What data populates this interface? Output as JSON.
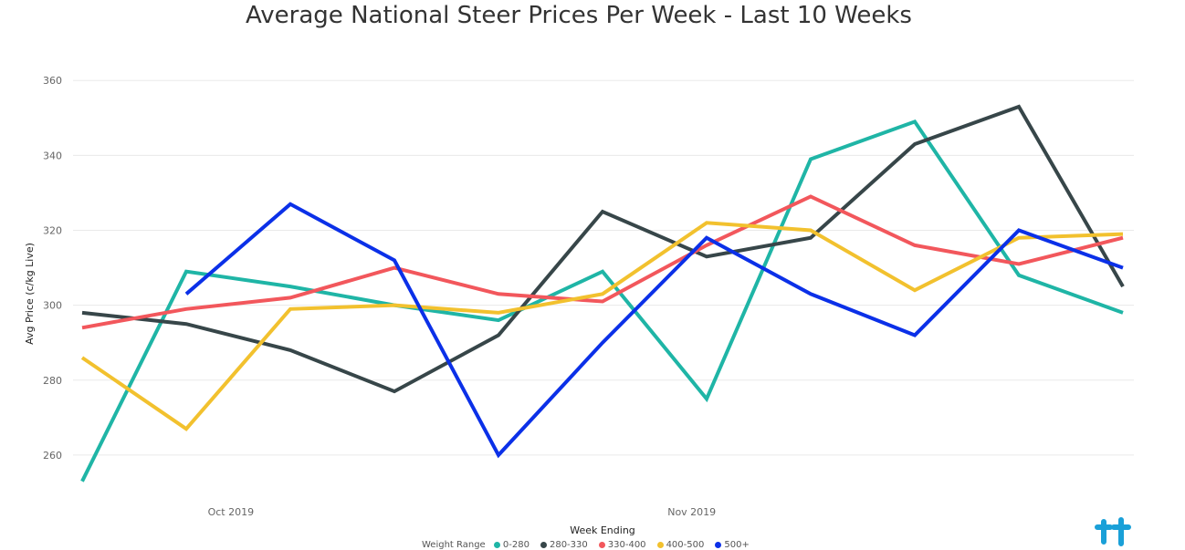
{
  "chart_data": {
    "type": "line",
    "title": "Average National Steer Prices Per Week - Last 10 Weeks",
    "xlabel": "Week Ending",
    "ylabel": "Avg Price (c/kg Live)",
    "ylim": [
      250,
      362
    ],
    "yticks": [
      260,
      280,
      300,
      320,
      340,
      360
    ],
    "x": [
      "2019-09-21",
      "2019-09-28",
      "2019-10-05",
      "2019-10-12",
      "2019-10-19",
      "2019-10-26",
      "2019-11-02",
      "2019-11-09",
      "2019-11-16",
      "2019-11-23",
      "2019-11-30"
    ],
    "xtick_labels": [
      {
        "date": "2019-10-01",
        "label": "Oct 2019"
      },
      {
        "date": "2019-11-01",
        "label": "Nov 2019"
      }
    ],
    "legend_title": "Weight Range",
    "series": [
      {
        "name": "0-280",
        "color": "#1fb5a6",
        "values": [
          253,
          309,
          305,
          300,
          296,
          309,
          275,
          339,
          349,
          308,
          298
        ]
      },
      {
        "name": "280-330",
        "color": "#374649",
        "values": [
          298,
          295,
          288,
          277,
          292,
          325,
          313,
          318,
          343,
          353,
          305
        ]
      },
      {
        "name": "330-400",
        "color": "#f2575c",
        "values": [
          294,
          299,
          302,
          310,
          303,
          301,
          316,
          329,
          316,
          311,
          318
        ]
      },
      {
        "name": "400-500",
        "color": "#f2c12e",
        "values": [
          286,
          267,
          299,
          300,
          298,
          303,
          322,
          320,
          304,
          318,
          319
        ]
      },
      {
        "name": "500+",
        "color": "#0b30e8",
        "values": [
          null,
          303,
          327,
          312,
          260,
          290,
          318,
          303,
          292,
          320,
          310
        ]
      }
    ]
  }
}
